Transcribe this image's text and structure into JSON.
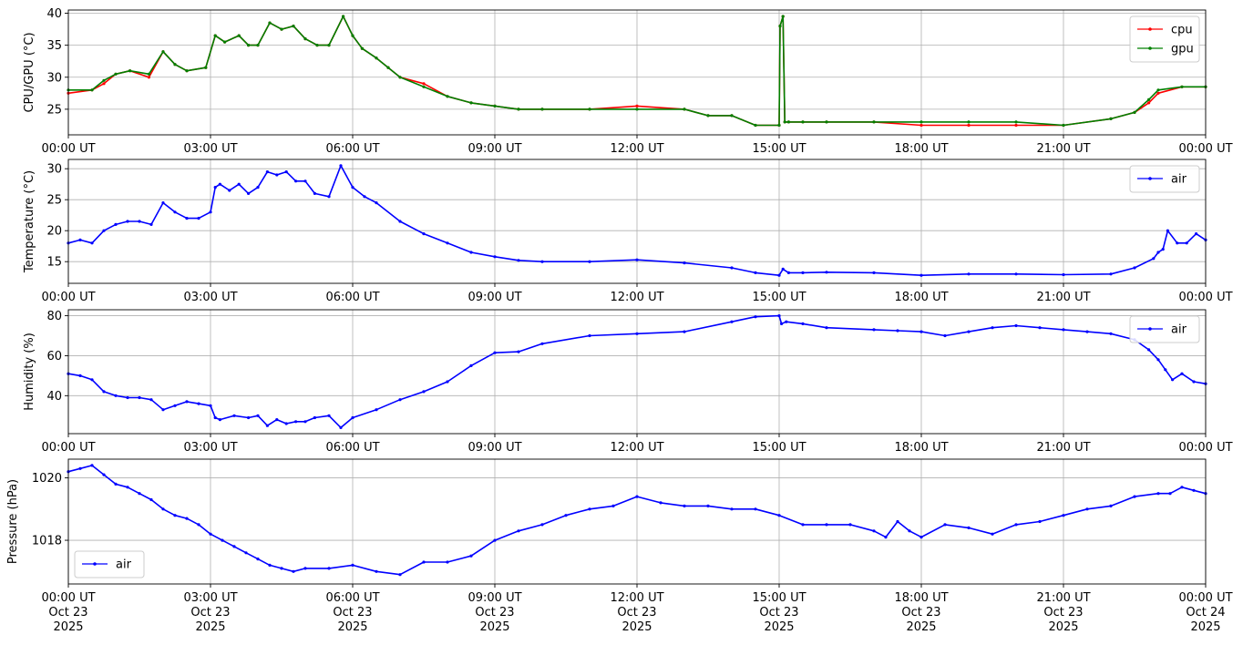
{
  "chart_data": [
    {
      "type": "line",
      "ylabel": "CPU/GPU (°C)",
      "x_ticks": [
        "00:00 UT",
        "03:00 UT",
        "06:00 UT",
        "09:00 UT",
        "12:00 UT",
        "15:00 UT",
        "18:00 UT",
        "21:00 UT",
        "00:00 UT"
      ],
      "y_ticks": [
        "25",
        "30",
        "35",
        "40"
      ],
      "ylim": [
        21,
        40.5
      ],
      "grid": true,
      "legend": "top-right",
      "series": [
        {
          "name": "cpu",
          "color": "#ff0000",
          "x": [
            0,
            0.5,
            0.75,
            1,
            1.3,
            1.7,
            2,
            2.25,
            2.5,
            2.9,
            3.1,
            3.3,
            3.6,
            3.8,
            4,
            4.25,
            4.5,
            4.75,
            5,
            5.25,
            5.5,
            5.8,
            6,
            6.2,
            6.5,
            6.75,
            7,
            7.5,
            8,
            8.5,
            9,
            9.5,
            10,
            11,
            12,
            13,
            13.5,
            14,
            14.5,
            15,
            15.02,
            15.08,
            15.12,
            15.2,
            15.5,
            16,
            17,
            18,
            19,
            20,
            21,
            22,
            22.5,
            22.8,
            23,
            23.5,
            24
          ],
          "values": [
            27.5,
            28,
            29,
            30.5,
            31,
            30,
            34,
            32,
            31,
            31.5,
            36.5,
            35.5,
            36.5,
            35,
            35,
            38.5,
            37.5,
            38,
            36,
            35,
            35,
            39.5,
            36.5,
            34.5,
            33,
            31.5,
            30,
            29,
            27,
            26,
            25.5,
            25,
            25,
            25,
            25.5,
            25,
            24,
            24,
            22.5,
            22.5,
            38,
            39.5,
            23,
            23,
            23,
            23,
            23,
            22.5,
            22.5,
            22.5,
            22.5,
            23.5,
            24.5,
            26,
            27.5,
            28.5,
            28.5
          ]
        },
        {
          "name": "gpu",
          "color": "#008000",
          "x": [
            0,
            0.5,
            0.75,
            1,
            1.3,
            1.7,
            2,
            2.25,
            2.5,
            2.9,
            3.1,
            3.3,
            3.6,
            3.8,
            4,
            4.25,
            4.5,
            4.75,
            5,
            5.25,
            5.5,
            5.8,
            6,
            6.2,
            6.5,
            6.75,
            7,
            7.5,
            8,
            8.5,
            9,
            9.5,
            10,
            11,
            12,
            13,
            13.5,
            14,
            14.5,
            15,
            15.02,
            15.08,
            15.12,
            15.2,
            15.5,
            16,
            17,
            18,
            19,
            20,
            21,
            22,
            22.5,
            22.8,
            23,
            23.5,
            24
          ],
          "values": [
            28,
            28,
            29.5,
            30.5,
            31,
            30.5,
            34,
            32,
            31,
            31.5,
            36.5,
            35.5,
            36.5,
            35,
            35,
            38.5,
            37.5,
            38,
            36,
            35,
            35,
            39.5,
            36.5,
            34.5,
            33,
            31.5,
            30,
            28.5,
            27,
            26,
            25.5,
            25,
            25,
            25,
            25,
            25,
            24,
            24,
            22.5,
            22.5,
            38,
            39.5,
            23,
            23,
            23,
            23,
            23,
            23,
            23,
            23,
            22.5,
            23.5,
            24.5,
            26.5,
            28,
            28.5,
            28.5
          ]
        }
      ]
    },
    {
      "type": "line",
      "ylabel": "Temperature (°C)",
      "x_ticks": [
        "00:00 UT",
        "03:00 UT",
        "06:00 UT",
        "09:00 UT",
        "12:00 UT",
        "15:00 UT",
        "18:00 UT",
        "21:00 UT",
        "00:00 UT"
      ],
      "y_ticks": [
        "15",
        "20",
        "25",
        "30"
      ],
      "ylim": [
        11.5,
        31.5
      ],
      "grid": true,
      "legend": "top-right",
      "series": [
        {
          "name": "air",
          "color": "#0000ff",
          "x": [
            0,
            0.25,
            0.5,
            0.75,
            1,
            1.25,
            1.5,
            1.75,
            2,
            2.25,
            2.5,
            2.75,
            3,
            3.1,
            3.2,
            3.4,
            3.6,
            3.8,
            4,
            4.2,
            4.4,
            4.6,
            4.8,
            5,
            5.2,
            5.5,
            5.75,
            6,
            6.25,
            6.5,
            7,
            7.5,
            8,
            8.5,
            9,
            9.5,
            10,
            11,
            12,
            13,
            14,
            14.5,
            15,
            15.08,
            15.2,
            15.5,
            16,
            17,
            18,
            19,
            20,
            21,
            22,
            22.5,
            22.9,
            23,
            23.1,
            23.2,
            23.4,
            23.6,
            23.8,
            24
          ],
          "values": [
            18,
            18.5,
            18,
            20,
            21,
            21.5,
            21.5,
            21,
            24.5,
            23,
            22,
            22,
            23,
            27,
            27.5,
            26.5,
            27.5,
            26,
            27,
            29.5,
            29,
            29.5,
            28,
            28,
            26,
            25.5,
            30.5,
            27,
            25.5,
            24.5,
            21.5,
            19.5,
            18,
            16.5,
            15.8,
            15.2,
            15,
            15,
            15.3,
            14.8,
            14,
            13.2,
            12.8,
            13.8,
            13.2,
            13.2,
            13.3,
            13.2,
            12.8,
            13,
            13,
            12.9,
            13,
            14,
            15.5,
            16.5,
            17,
            20,
            18,
            18,
            19.5,
            18.5
          ]
        }
      ]
    },
    {
      "type": "line",
      "ylabel": "Humidity (%)",
      "x_ticks": [
        "00:00 UT",
        "03:00 UT",
        "06:00 UT",
        "09:00 UT",
        "12:00 UT",
        "15:00 UT",
        "18:00 UT",
        "21:00 UT",
        "00:00 UT"
      ],
      "y_ticks": [
        "40",
        "60",
        "80"
      ],
      "ylim": [
        21,
        83
      ],
      "grid": true,
      "legend": "top-right",
      "series": [
        {
          "name": "air",
          "color": "#0000ff",
          "x": [
            0,
            0.25,
            0.5,
            0.75,
            1,
            1.25,
            1.5,
            1.75,
            2,
            2.25,
            2.5,
            2.75,
            3,
            3.1,
            3.2,
            3.5,
            3.8,
            4,
            4.2,
            4.4,
            4.6,
            4.8,
            5,
            5.2,
            5.5,
            5.75,
            6,
            6.5,
            7,
            7.5,
            8,
            8.5,
            9,
            9.5,
            10,
            11,
            12,
            13,
            14,
            14.5,
            15,
            15.05,
            15.15,
            15.5,
            16,
            17,
            17.5,
            18,
            18.5,
            19,
            19.5,
            20,
            20.5,
            21,
            21.5,
            22,
            22.5,
            22.8,
            23,
            23.15,
            23.3,
            23.5,
            23.75,
            24
          ],
          "values": [
            51,
            50,
            48,
            42,
            40,
            39,
            39,
            38,
            33,
            35,
            37,
            36,
            35,
            29,
            28,
            30,
            29,
            30,
            25,
            28,
            26,
            27,
            27,
            29,
            30,
            24,
            29,
            33,
            38,
            42,
            47,
            55,
            61.5,
            62,
            66,
            70,
            71,
            72,
            77,
            79.5,
            80,
            76,
            77,
            76,
            74,
            73,
            72.5,
            72,
            70,
            72,
            74,
            75,
            74,
            73,
            72,
            71,
            68,
            63,
            58,
            53,
            48,
            51,
            47,
            46
          ]
        }
      ]
    },
    {
      "type": "line",
      "ylabel": "Pressure (hPa)",
      "x_ticks": [
        "00:00 UT\nOct 23\n2025",
        "03:00 UT\nOct 23\n2025",
        "06:00 UT\nOct 23\n2025",
        "09:00 UT\nOct 23\n2025",
        "12:00 UT\nOct 23\n2025",
        "15:00 UT\nOct 23\n2025",
        "18:00 UT\nOct 23\n2025",
        "21:00 UT\nOct 23\n2025",
        "00:00 UT\nOct 24\n2025"
      ],
      "y_ticks": [
        "1018",
        "1020"
      ],
      "ylim": [
        1016.6,
        1020.6
      ],
      "grid": true,
      "legend": "bottom-left",
      "series": [
        {
          "name": "air",
          "color": "#0000ff",
          "x": [
            0,
            0.25,
            0.5,
            0.75,
            1,
            1.25,
            1.5,
            1.75,
            2,
            2.25,
            2.5,
            2.75,
            3,
            3.25,
            3.5,
            3.75,
            4,
            4.25,
            4.5,
            4.75,
            5,
            5.5,
            6,
            6.5,
            7,
            7.5,
            8,
            8.5,
            9,
            9.5,
            10,
            10.5,
            11,
            11.5,
            12,
            12.5,
            13,
            13.5,
            14,
            14.5,
            15,
            15.5,
            16,
            16.5,
            17,
            17.25,
            17.5,
            17.75,
            18,
            18.5,
            19,
            19.5,
            20,
            20.5,
            21,
            21.5,
            22,
            22.5,
            23,
            23.25,
            23.5,
            23.75,
            24
          ],
          "values": [
            1020.2,
            1020.3,
            1020.4,
            1020.1,
            1019.8,
            1019.7,
            1019.5,
            1019.3,
            1019,
            1018.8,
            1018.7,
            1018.5,
            1018.2,
            1018,
            1017.8,
            1017.6,
            1017.4,
            1017.2,
            1017.1,
            1017,
            1017.1,
            1017.1,
            1017.2,
            1017,
            1016.9,
            1017.3,
            1017.3,
            1017.5,
            1018,
            1018.3,
            1018.5,
            1018.8,
            1019,
            1019.1,
            1019.4,
            1019.2,
            1019.1,
            1019.1,
            1019,
            1019,
            1018.8,
            1018.5,
            1018.5,
            1018.5,
            1018.3,
            1018.1,
            1018.6,
            1018.3,
            1018.1,
            1018.5,
            1018.4,
            1018.2,
            1018.5,
            1018.6,
            1018.8,
            1019,
            1019.1,
            1019.4,
            1019.5,
            1019.5,
            1019.7,
            1019.6,
            1019.5
          ]
        }
      ]
    }
  ]
}
